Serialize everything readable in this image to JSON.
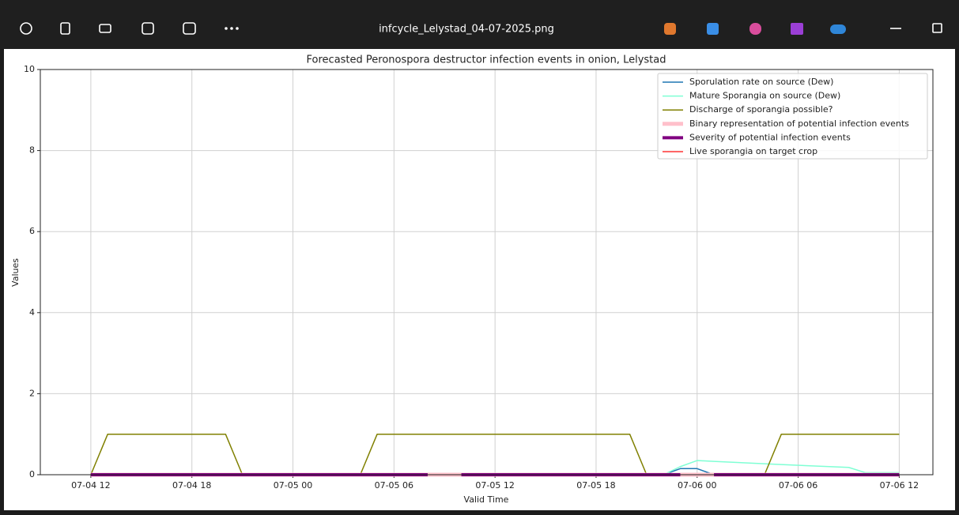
{
  "window": {
    "title": "infcycle_Lelystad_04-07-2025.png"
  },
  "chart_data": {
    "type": "line",
    "title": "Forecasted Peronospora destructor infection events in onion, Lelystad",
    "x_label": "Valid Time",
    "y_label": "Values",
    "x": [
      "07-04 12",
      "07-04 13",
      "07-04 20",
      "07-04 21",
      "07-05 04",
      "07-05 05",
      "07-05 08",
      "07-05 09",
      "07-05 10",
      "07-05 20",
      "07-05 21",
      "07-05 22",
      "07-05 23",
      "07-06 00",
      "07-06 01",
      "07-06 04",
      "07-06 05",
      "07-06 09",
      "07-06 10",
      "07-06 12"
    ],
    "xlim": [
      "07-04 09",
      "07-06 14"
    ],
    "xticks": [
      "07-04 12",
      "07-04 18",
      "07-05 00",
      "07-05 06",
      "07-05 12",
      "07-05 18",
      "07-06 00",
      "07-06 06",
      "07-06 12"
    ],
    "ylim": [
      0,
      10
    ],
    "yticks": [
      0,
      2,
      4,
      6,
      8,
      10
    ],
    "grid": true,
    "legend": "upper right",
    "series": [
      {
        "name": "Sporulation rate on source (Dew)",
        "color": "#1f77b4",
        "width": 1.5,
        "values": [
          0,
          0,
          0,
          0,
          0,
          0,
          0,
          0,
          0,
          0,
          0,
          0,
          0.15,
          0.15,
          0,
          0,
          0,
          0,
          0,
          0
        ]
      },
      {
        "name": "Mature Sporangia on source (Dew)",
        "color": "#7fffd4",
        "width": 1.5,
        "values": [
          0,
          0,
          0,
          0,
          0,
          0,
          0,
          0,
          0,
          0,
          0,
          0,
          0.2,
          0.35,
          0.33,
          0.27,
          0.25,
          0.18,
          0.05,
          0.05
        ]
      },
      {
        "name": "Discharge of sporangia possible?",
        "color": "#808000",
        "width": 1.5,
        "values": [
          0,
          1,
          1,
          0,
          0,
          1,
          1,
          1,
          1,
          1,
          0,
          0,
          0,
          0,
          0,
          0,
          1,
          1,
          1,
          1
        ]
      },
      {
        "name": "Binary representation of potential infection events",
        "color": "#ffc0cb",
        "width": 5,
        "values": [
          0,
          0,
          0,
          0,
          0,
          0,
          0,
          0,
          0,
          0,
          0,
          0,
          0,
          0,
          0,
          0,
          0,
          0,
          0,
          0
        ]
      },
      {
        "name": "Severity of potential infection events",
        "color": "#800080",
        "width": 4,
        "values": [
          0,
          0,
          0,
          0,
          0,
          0,
          0,
          null,
          0,
          0,
          0,
          0,
          0,
          null,
          0,
          0,
          0,
          0,
          0,
          0
        ]
      },
      {
        "name": "Live sporangia on target crop",
        "color": "#ff3333",
        "width": 1.5,
        "values": [
          0,
          0,
          0,
          0,
          0,
          0,
          0,
          0,
          0,
          0,
          0,
          0,
          0,
          0,
          0,
          0,
          0,
          0,
          0,
          0
        ]
      }
    ]
  }
}
